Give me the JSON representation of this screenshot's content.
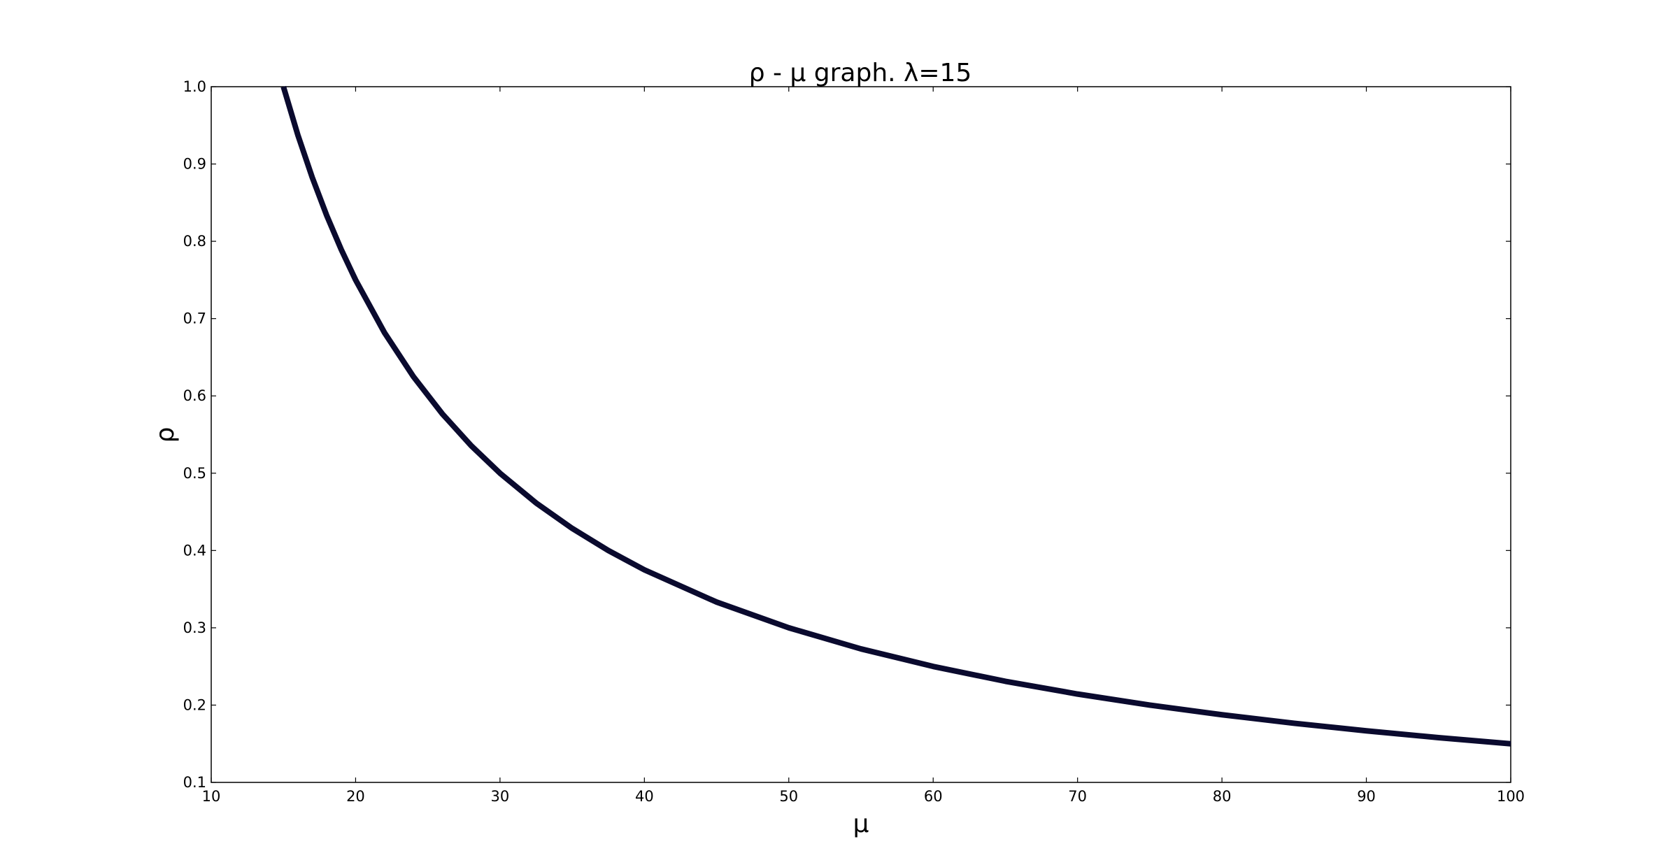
{
  "chart_data": {
    "type": "line",
    "title": "ρ - μ graph. λ=15",
    "xlabel": "μ",
    "ylabel": "ρ",
    "xlim": [
      10,
      100
    ],
    "ylim": [
      0.1,
      1.0
    ],
    "x_ticks": [
      10,
      20,
      30,
      40,
      50,
      60,
      70,
      80,
      90,
      100
    ],
    "x_tick_labels": [
      "10",
      "20",
      "30",
      "40",
      "50",
      "60",
      "70",
      "80",
      "90",
      "100"
    ],
    "y_ticks": [
      0.1,
      0.2,
      0.3,
      0.4,
      0.5,
      0.6,
      0.7,
      0.8,
      0.9,
      1.0
    ],
    "y_tick_labels": [
      "0.1",
      "0.2",
      "0.3",
      "0.4",
      "0.5",
      "0.6",
      "0.7",
      "0.8",
      "0.9",
      "1.0"
    ],
    "grid": false,
    "series": [
      {
        "color": "#0a0a2e",
        "x": [
          15,
          16,
          17,
          18,
          19,
          20,
          22,
          24,
          26,
          28,
          30,
          32.5,
          35,
          37.5,
          40,
          45,
          50,
          55,
          60,
          65,
          70,
          75,
          80,
          85,
          90,
          95,
          100
        ],
        "y": [
          1.0,
          0.9375,
          0.8824,
          0.8333,
          0.7895,
          0.75,
          0.6818,
          0.625,
          0.5769,
          0.5357,
          0.5,
          0.4615,
          0.4286,
          0.4,
          0.375,
          0.3333,
          0.3,
          0.2727,
          0.25,
          0.2308,
          0.2143,
          0.2,
          0.1875,
          0.1765,
          0.1667,
          0.1579,
          0.15
        ]
      }
    ]
  }
}
